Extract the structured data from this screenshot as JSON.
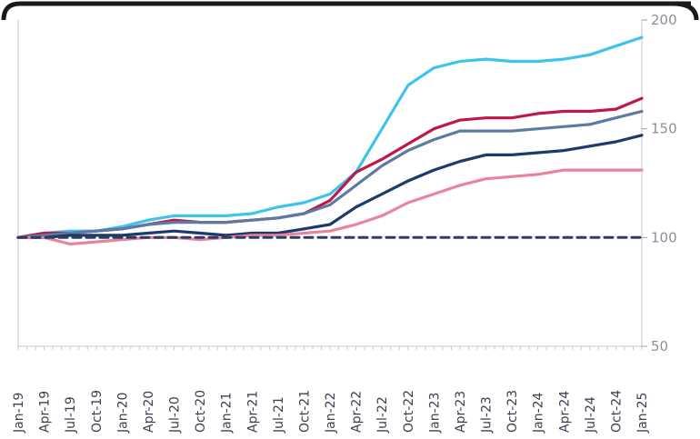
{
  "chart_data": {
    "type": "line",
    "title": "",
    "xlabel": "",
    "ylabel": "",
    "ylim": [
      50,
      200
    ],
    "y_axis_side": "right",
    "y_ticks": [
      "50",
      "100",
      "150",
      "200"
    ],
    "x_tick_labels": [
      "Jan-19",
      "Apr-19",
      "Jul-19",
      "Oct-19",
      "Jan-20",
      "Apr-20",
      "Jul-20",
      "Oct-20",
      "Jan-21",
      "Apr-21",
      "Jul-21",
      "Oct-21",
      "Jan-22",
      "Apr-22",
      "Jul-22",
      "Oct-22",
      "Jan-23",
      "Apr-23",
      "Jul-23",
      "Oct-23",
      "Jan-24",
      "Apr-24",
      "Jul-24",
      "Oct-24",
      "Jan-25"
    ],
    "legend": "none",
    "grid": false,
    "series": [
      {
        "color": "#3ec3ec",
        "style": "solid",
        "values": [
          100,
          102,
          103,
          103,
          105,
          108,
          110,
          110,
          110,
          111,
          114,
          116,
          120,
          130,
          150,
          170,
          178,
          181,
          182,
          181,
          181,
          182,
          184,
          188,
          192
        ]
      },
      {
        "color": "#c0174a",
        "style": "solid",
        "values": [
          100,
          102,
          102,
          103,
          104,
          106,
          108,
          107,
          107,
          108,
          109,
          111,
          117,
          130,
          136,
          143,
          150,
          154,
          155,
          155,
          157,
          158,
          158,
          159,
          164
        ]
      },
      {
        "color": "#5d7aa5",
        "style": "solid",
        "values": [
          100,
          101,
          102,
          103,
          104,
          106,
          107,
          107,
          107,
          108,
          109,
          111,
          115,
          124,
          133,
          140,
          145,
          149,
          149,
          149,
          150,
          151,
          152,
          155,
          158
        ]
      },
      {
        "color": "#1c3a6b",
        "style": "solid",
        "values": [
          100,
          100,
          101,
          101,
          101,
          102,
          103,
          102,
          101,
          102,
          102,
          104,
          106,
          114,
          120,
          126,
          131,
          135,
          138,
          138,
          139,
          140,
          142,
          144,
          147
        ]
      },
      {
        "color": "#e8849c",
        "style": "solid",
        "values": [
          100,
          100,
          97,
          98,
          99,
          100,
          100,
          99,
          100,
          101,
          101,
          102,
          103,
          106,
          110,
          116,
          120,
          124,
          127,
          128,
          129,
          131,
          131,
          131,
          131
        ]
      },
      {
        "color": "#2e3b66",
        "style": "dashed",
        "values": [
          100,
          100,
          100,
          100,
          100,
          100,
          100,
          100,
          100,
          100,
          100,
          100,
          100,
          100,
          100,
          100,
          100,
          100,
          100,
          100,
          100,
          100,
          100,
          100,
          100
        ]
      }
    ]
  }
}
